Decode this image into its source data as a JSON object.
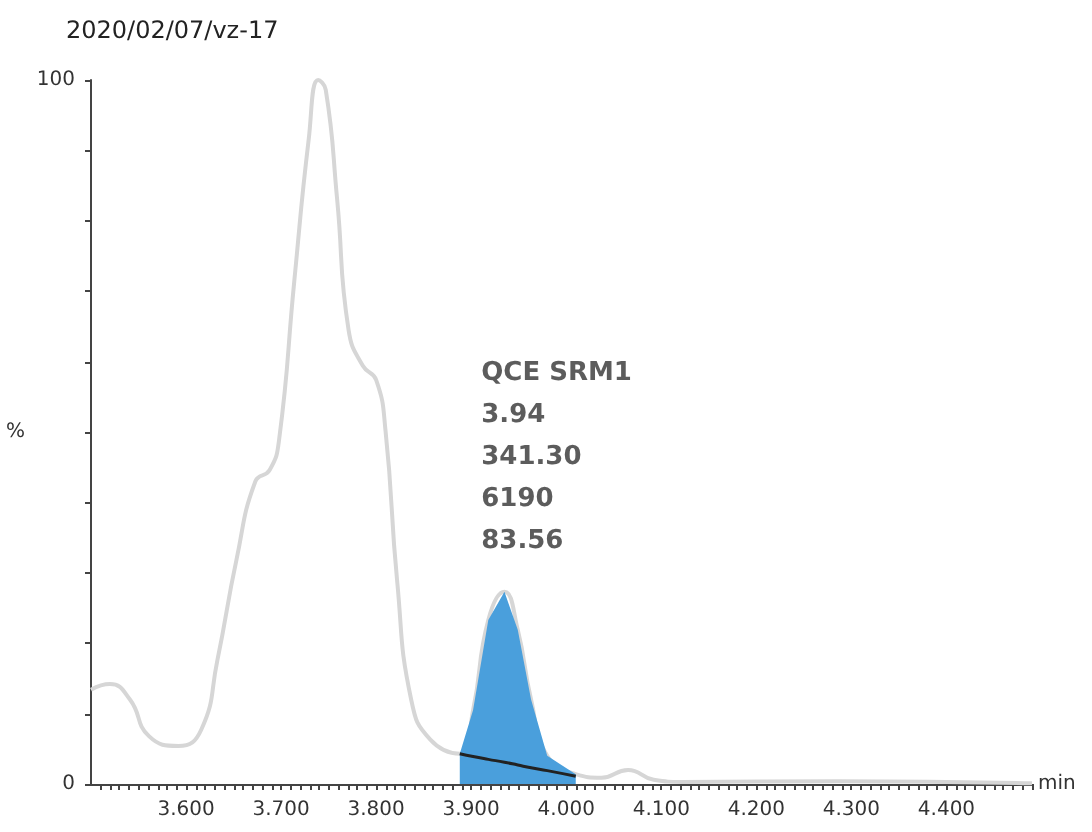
{
  "chart_data": {
    "type": "line",
    "title": "2020/02/07/vz-17",
    "xlabel": "min",
    "ylabel": "%",
    "xlim": [
      3.5,
      4.49
    ],
    "ylim": [
      0,
      100
    ],
    "xticks": [
      {
        "value": 3.51,
        "label": null
      },
      {
        "value": 3.52,
        "label": null
      },
      {
        "value": 3.53,
        "label": null
      },
      {
        "value": 3.54,
        "label": null
      },
      {
        "value": 3.55,
        "label": null
      },
      {
        "value": 3.56,
        "label": null
      },
      {
        "value": 3.57,
        "label": null
      },
      {
        "value": 3.58,
        "label": null
      },
      {
        "value": 3.59,
        "label": null
      },
      {
        "value": 3.6,
        "label": "3.600"
      },
      {
        "value": 3.61,
        "label": null
      },
      {
        "value": 3.62,
        "label": null
      },
      {
        "value": 3.63,
        "label": null
      },
      {
        "value": 3.64,
        "label": null
      },
      {
        "value": 3.65,
        "label": null
      },
      {
        "value": 3.66,
        "label": null
      },
      {
        "value": 3.67,
        "label": null
      },
      {
        "value": 3.68,
        "label": null
      },
      {
        "value": 3.69,
        "label": null
      },
      {
        "value": 3.7,
        "label": "3.700"
      },
      {
        "value": 3.71,
        "label": null
      },
      {
        "value": 3.72,
        "label": null
      },
      {
        "value": 3.73,
        "label": null
      },
      {
        "value": 3.74,
        "label": null
      },
      {
        "value": 3.75,
        "label": null
      },
      {
        "value": 3.76,
        "label": null
      },
      {
        "value": 3.77,
        "label": null
      },
      {
        "value": 3.78,
        "label": null
      },
      {
        "value": 3.79,
        "label": null
      },
      {
        "value": 3.8,
        "label": "3.800"
      },
      {
        "value": 3.81,
        "label": null
      },
      {
        "value": 3.82,
        "label": null
      },
      {
        "value": 3.83,
        "label": null
      },
      {
        "value": 3.84,
        "label": null
      },
      {
        "value": 3.85,
        "label": null
      },
      {
        "value": 3.86,
        "label": null
      },
      {
        "value": 3.87,
        "label": null
      },
      {
        "value": 3.88,
        "label": null
      },
      {
        "value": 3.89,
        "label": null
      },
      {
        "value": 3.9,
        "label": "3.900"
      },
      {
        "value": 3.91,
        "label": null
      },
      {
        "value": 3.92,
        "label": null
      },
      {
        "value": 3.93,
        "label": null
      },
      {
        "value": 3.94,
        "label": null
      },
      {
        "value": 3.95,
        "label": null
      },
      {
        "value": 3.96,
        "label": null
      },
      {
        "value": 3.97,
        "label": null
      },
      {
        "value": 3.98,
        "label": null
      },
      {
        "value": 3.99,
        "label": null
      },
      {
        "value": 4.0,
        "label": "4.000"
      },
      {
        "value": 4.01,
        "label": null
      },
      {
        "value": 4.02,
        "label": null
      },
      {
        "value": 4.03,
        "label": null
      },
      {
        "value": 4.04,
        "label": null
      },
      {
        "value": 4.05,
        "label": null
      },
      {
        "value": 4.06,
        "label": null
      },
      {
        "value": 4.07,
        "label": null
      },
      {
        "value": 4.08,
        "label": null
      },
      {
        "value": 4.09,
        "label": null
      },
      {
        "value": 4.1,
        "label": "4.100"
      },
      {
        "value": 4.11,
        "label": null
      },
      {
        "value": 4.12,
        "label": null
      },
      {
        "value": 4.13,
        "label": null
      },
      {
        "value": 4.14,
        "label": null
      },
      {
        "value": 4.15,
        "label": null
      },
      {
        "value": 4.16,
        "label": null
      },
      {
        "value": 4.17,
        "label": null
      },
      {
        "value": 4.18,
        "label": null
      },
      {
        "value": 4.19,
        "label": null
      },
      {
        "value": 4.2,
        "label": "4.200"
      },
      {
        "value": 4.21,
        "label": null
      },
      {
        "value": 4.22,
        "label": null
      },
      {
        "value": 4.23,
        "label": null
      },
      {
        "value": 4.24,
        "label": null
      },
      {
        "value": 4.25,
        "label": null
      },
      {
        "value": 4.26,
        "label": null
      },
      {
        "value": 4.27,
        "label": null
      },
      {
        "value": 4.28,
        "label": null
      },
      {
        "value": 4.29,
        "label": null
      },
      {
        "value": 4.3,
        "label": "4.300"
      },
      {
        "value": 4.31,
        "label": null
      },
      {
        "value": 4.32,
        "label": null
      },
      {
        "value": 4.33,
        "label": null
      },
      {
        "value": 4.34,
        "label": null
      },
      {
        "value": 4.35,
        "label": null
      },
      {
        "value": 4.36,
        "label": null
      },
      {
        "value": 4.37,
        "label": null
      },
      {
        "value": 4.38,
        "label": null
      },
      {
        "value": 4.39,
        "label": null
      },
      {
        "value": 4.4,
        "label": "4.400"
      },
      {
        "value": 4.41,
        "label": null
      },
      {
        "value": 4.42,
        "label": null
      },
      {
        "value": 4.43,
        "label": null
      },
      {
        "value": 4.44,
        "label": null
      },
      {
        "value": 4.45,
        "label": null
      },
      {
        "value": 4.46,
        "label": null
      },
      {
        "value": 4.47,
        "label": null
      },
      {
        "value": 4.48,
        "label": null
      },
      {
        "value": 4.49,
        "label": null
      }
    ],
    "yticks": [
      0,
      {
        "value": 10,
        "label": null
      },
      {
        "value": 20,
        "label": null
      },
      {
        "value": 30,
        "label": null
      },
      {
        "value": 40,
        "label": null
      },
      {
        "value": 50,
        "label": null
      },
      {
        "value": 60,
        "label": null
      },
      {
        "value": 70,
        "label": null
      },
      {
        "value": 80,
        "label": null
      },
      {
        "value": 90,
        "label": null
      },
      100
    ],
    "grid": false,
    "legend": false,
    "marker": "none",
    "series": [
      {
        "type": "line",
        "color": "#d6d6d6",
        "x": [
          3.5,
          3.52,
          3.541,
          3.561,
          3.592,
          3.616,
          3.633,
          3.653,
          3.673,
          3.688,
          3.698,
          3.714,
          3.729,
          3.739,
          3.747,
          3.759,
          3.771,
          3.786,
          3.8,
          3.81,
          3.822,
          3.837,
          3.857,
          3.888,
          3.902,
          3.918,
          3.935,
          3.949,
          3.963,
          3.98,
          4.01,
          4.037,
          4.065,
          4.092,
          4.122,
          4.286,
          4.49
        ],
        "values": [
          13.4,
          14.2,
          12,
          6.8,
          5.4,
          7.7,
          17.6,
          31.8,
          43,
          44.6,
          49,
          71.6,
          91.5,
          100,
          98.6,
          83,
          64.5,
          59.4,
          57.4,
          50,
          29,
          11.9,
          6.3,
          4.3,
          10.5,
          23.3,
          27.3,
          21.9,
          12,
          4,
          1.4,
          0.9,
          2,
          0.6,
          0.3,
          0.4,
          0.1
        ]
      },
      {
        "type": "area",
        "color": "#4a9fdc",
        "x": [
          3.888,
          3.902,
          3.918,
          3.935,
          3.949,
          3.963,
          3.98,
          4.01
        ],
        "values": [
          4.3,
          10.5,
          23.3,
          27.3,
          21.9,
          12,
          4,
          1.4
        ]
      },
      {
        "type": "line",
        "color": "#222222",
        "x": [
          3.888,
          3.902,
          3.918,
          3.935,
          3.949,
          3.963,
          3.98,
          4.01
        ],
        "values": [
          4.3,
          3.9,
          3.5,
          3.1,
          2.7,
          2.3,
          1.9,
          1.1
        ]
      }
    ],
    "annotations": [
      {
        "text": "QCE SRM1\n3.94\n341.30\n6190\n83.56",
        "x": 3.94,
        "y": 27.3
      }
    ]
  }
}
